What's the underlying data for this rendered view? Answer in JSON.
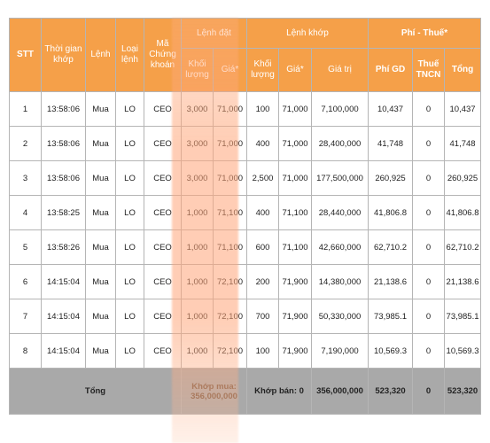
{
  "header": {
    "stt": "STT",
    "time": "Thời gian khớp",
    "order": "Lệnh",
    "order_type": "Loại lệnh",
    "code": "Mã Chứng khoán",
    "placed_group": "Lệnh đặt",
    "matched_group": "Lệnh khớp",
    "fee_group": "Phí - Thuế*",
    "placed_qty": "Khối lượng",
    "placed_price": "Giá*",
    "matched_qty": "Khối lượng",
    "matched_price": "Giá*",
    "matched_value": "Giá trị",
    "fee_gd": "Phí GD",
    "tax": "Thuế TNCN",
    "total": "Tổng"
  },
  "rows": [
    {
      "stt": "1",
      "time": "13:58:06",
      "side": "Mua",
      "type": "LO",
      "code": "CEO",
      "pq": "3,000",
      "pp": "71,000",
      "mq": "100",
      "mp": "71,000",
      "mv": "7,100,000",
      "fee": "10,437",
      "tax": "0",
      "total": "10,437"
    },
    {
      "stt": "2",
      "time": "13:58:06",
      "side": "Mua",
      "type": "LO",
      "code": "CEO",
      "pq": "3,000",
      "pp": "71,000",
      "mq": "400",
      "mp": "71,000",
      "mv": "28,400,000",
      "fee": "41,748",
      "tax": "0",
      "total": "41,748"
    },
    {
      "stt": "3",
      "time": "13:58:06",
      "side": "Mua",
      "type": "LO",
      "code": "CEO",
      "pq": "3,000",
      "pp": "71,000",
      "mq": "2,500",
      "mp": "71,000",
      "mv": "177,500,000",
      "fee": "260,925",
      "tax": "0",
      "total": "260,925"
    },
    {
      "stt": "4",
      "time": "13:58:25",
      "side": "Mua",
      "type": "LO",
      "code": "CEO",
      "pq": "1,000",
      "pp": "71,100",
      "mq": "400",
      "mp": "71,100",
      "mv": "28,440,000",
      "fee": "41,806.8",
      "tax": "0",
      "total": "41,806.8"
    },
    {
      "stt": "5",
      "time": "13:58:26",
      "side": "Mua",
      "type": "LO",
      "code": "CEO",
      "pq": "1,000",
      "pp": "71,100",
      "mq": "600",
      "mp": "71,100",
      "mv": "42,660,000",
      "fee": "62,710.2",
      "tax": "0",
      "total": "62,710.2"
    },
    {
      "stt": "6",
      "time": "14:15:04",
      "side": "Mua",
      "type": "LO",
      "code": "CEO",
      "pq": "1,000",
      "pp": "72,100",
      "mq": "200",
      "mp": "71,900",
      "mv": "14,380,000",
      "fee": "21,138.6",
      "tax": "0",
      "total": "21,138.6"
    },
    {
      "stt": "7",
      "time": "14:15:04",
      "side": "Mua",
      "type": "LO",
      "code": "CEO",
      "pq": "1,000",
      "pp": "72,100",
      "mq": "700",
      "mp": "71,900",
      "mv": "50,330,000",
      "fee": "73,985.1",
      "tax": "0",
      "total": "73,985.1"
    },
    {
      "stt": "8",
      "time": "14:15:04",
      "side": "Mua",
      "type": "LO",
      "code": "CEO",
      "pq": "1,000",
      "pp": "72,100",
      "mq": "100",
      "mp": "71,900",
      "mv": "7,190,000",
      "fee": "10,569.3",
      "tax": "0",
      "total": "10,569.3"
    }
  ],
  "footer": {
    "label": "Tổng",
    "buy_match": "Khớp mua: 356,000,000",
    "sell_match": "Khớp bán: 0",
    "value": "356,000,000",
    "fee": "523,320",
    "tax": "0",
    "total": "523,320"
  },
  "colors": {
    "header_bg": "#f5a049",
    "footer_bg": "#a9a9a9",
    "highlight": "#ffa878"
  }
}
